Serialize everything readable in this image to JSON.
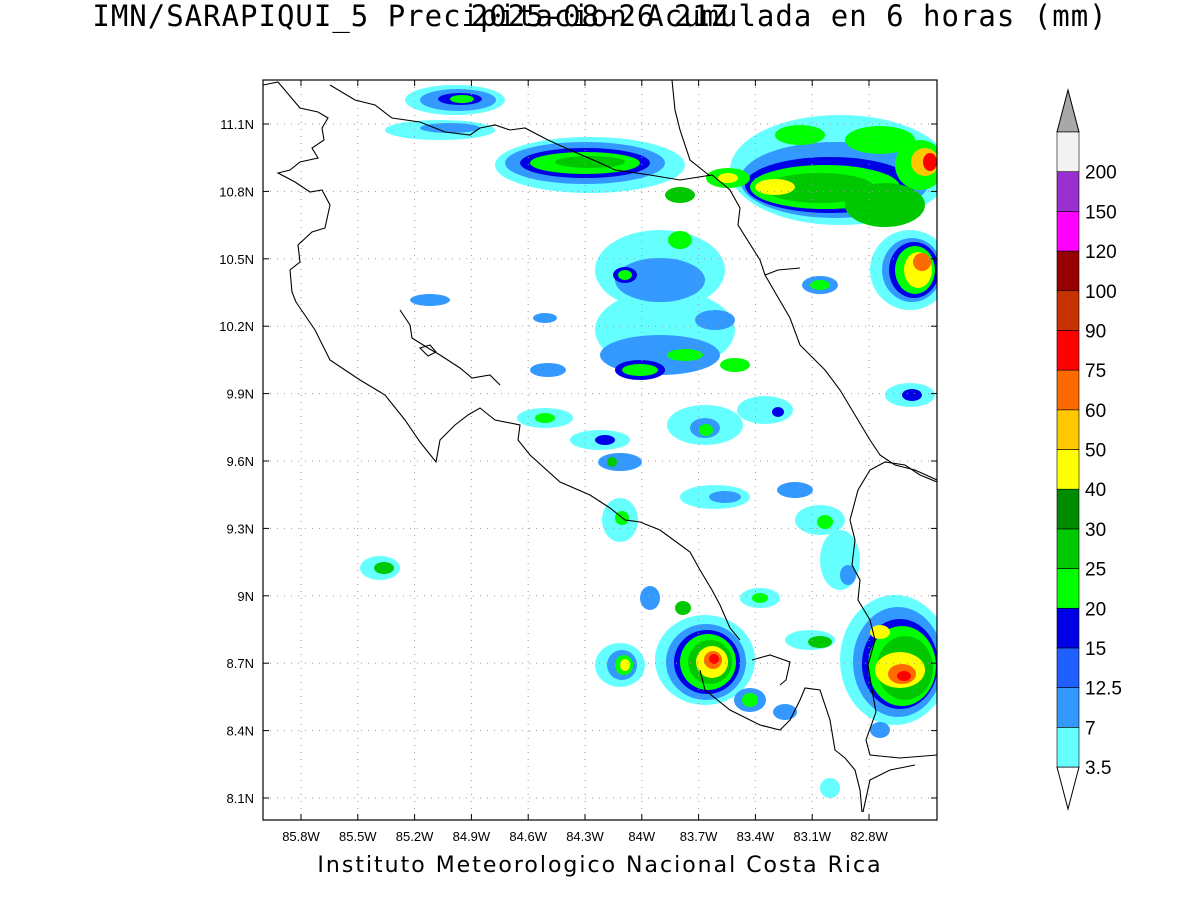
{
  "title": {
    "line1": "IMN/SARAPIQUI_5 Precipitacion Acumulada en 6 horas (mm)",
    "line2": "2025-08-26 21Z"
  },
  "footer": "Instituto Meteorologico Nacional Costa Rica",
  "map": {
    "lon_range": [
      -86.0,
      -82.4
    ],
    "lat_range": [
      8.0,
      11.3
    ],
    "lon_ticks": [
      "85.8W",
      "85.5W",
      "85.2W",
      "84.9W",
      "84.6W",
      "84.3W",
      "84W",
      "83.7W",
      "83.4W",
      "83.1W",
      "82.8W"
    ],
    "lat_ticks": [
      "11.1N",
      "10.8N",
      "10.5N",
      "10.2N",
      "9.9N",
      "9.6N",
      "9.3N",
      "9N",
      "8.7N",
      "8.4N",
      "8.1N"
    ],
    "grid": "dotted"
  },
  "colorbar": {
    "levels": [
      "3.5",
      "7",
      "12.5",
      "15",
      "20",
      "25",
      "30",
      "40",
      "50",
      "60",
      "75",
      "90",
      "100",
      "120",
      "150",
      "200"
    ],
    "colors": [
      "#66ffff",
      "#3399ff",
      "#1f5fff",
      "#0000e6",
      "#00ff00",
      "#00c800",
      "#008c00",
      "#ffff00",
      "#ffc800",
      "#ff6a00",
      "#ff0000",
      "#c83200",
      "#960000",
      "#ff00ff",
      "#9b30d0",
      "#f2f2f2"
    ],
    "upper_arrow_color": "#a8a8a8"
  }
}
